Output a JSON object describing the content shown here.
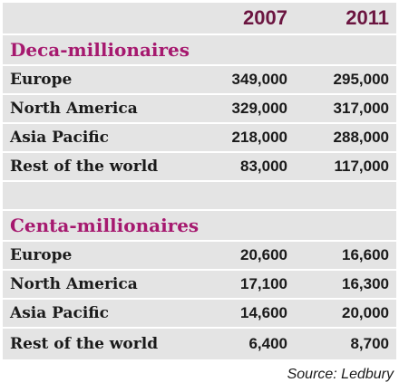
{
  "chart_data": {
    "type": "table",
    "columns": [
      "2007",
      "2011"
    ],
    "groups": [
      {
        "title": "Deca-millionaires",
        "rows": [
          {
            "region": "Europe",
            "v2007": "349,000",
            "v2011": "295,000"
          },
          {
            "region": "North America",
            "v2007": "329,000",
            "v2011": "317,000"
          },
          {
            "region": "Asia Pacific",
            "v2007": "218,000",
            "v2011": "288,000"
          },
          {
            "region": "Rest of the world",
            "v2007": "83,000",
            "v2011": "117,000"
          }
        ]
      },
      {
        "title": "Centa-millionaires",
        "rows": [
          {
            "region": "Europe",
            "v2007": "20,600",
            "v2011": "16,600"
          },
          {
            "region": "North America",
            "v2007": "17,100",
            "v2011": "16,300"
          },
          {
            "region": "Asia Pacific",
            "v2007": "14,600",
            "v2011": "20,000"
          },
          {
            "region": "Rest of the world",
            "v2007": "6,400",
            "v2011": "8,700"
          }
        ]
      }
    ],
    "source": "Source: Ledbury"
  },
  "colors": {
    "header_text": "#6b1540",
    "section_text": "#a6196f",
    "row_background": "#e4e4e4",
    "body_text": "#1a1a1a"
  }
}
